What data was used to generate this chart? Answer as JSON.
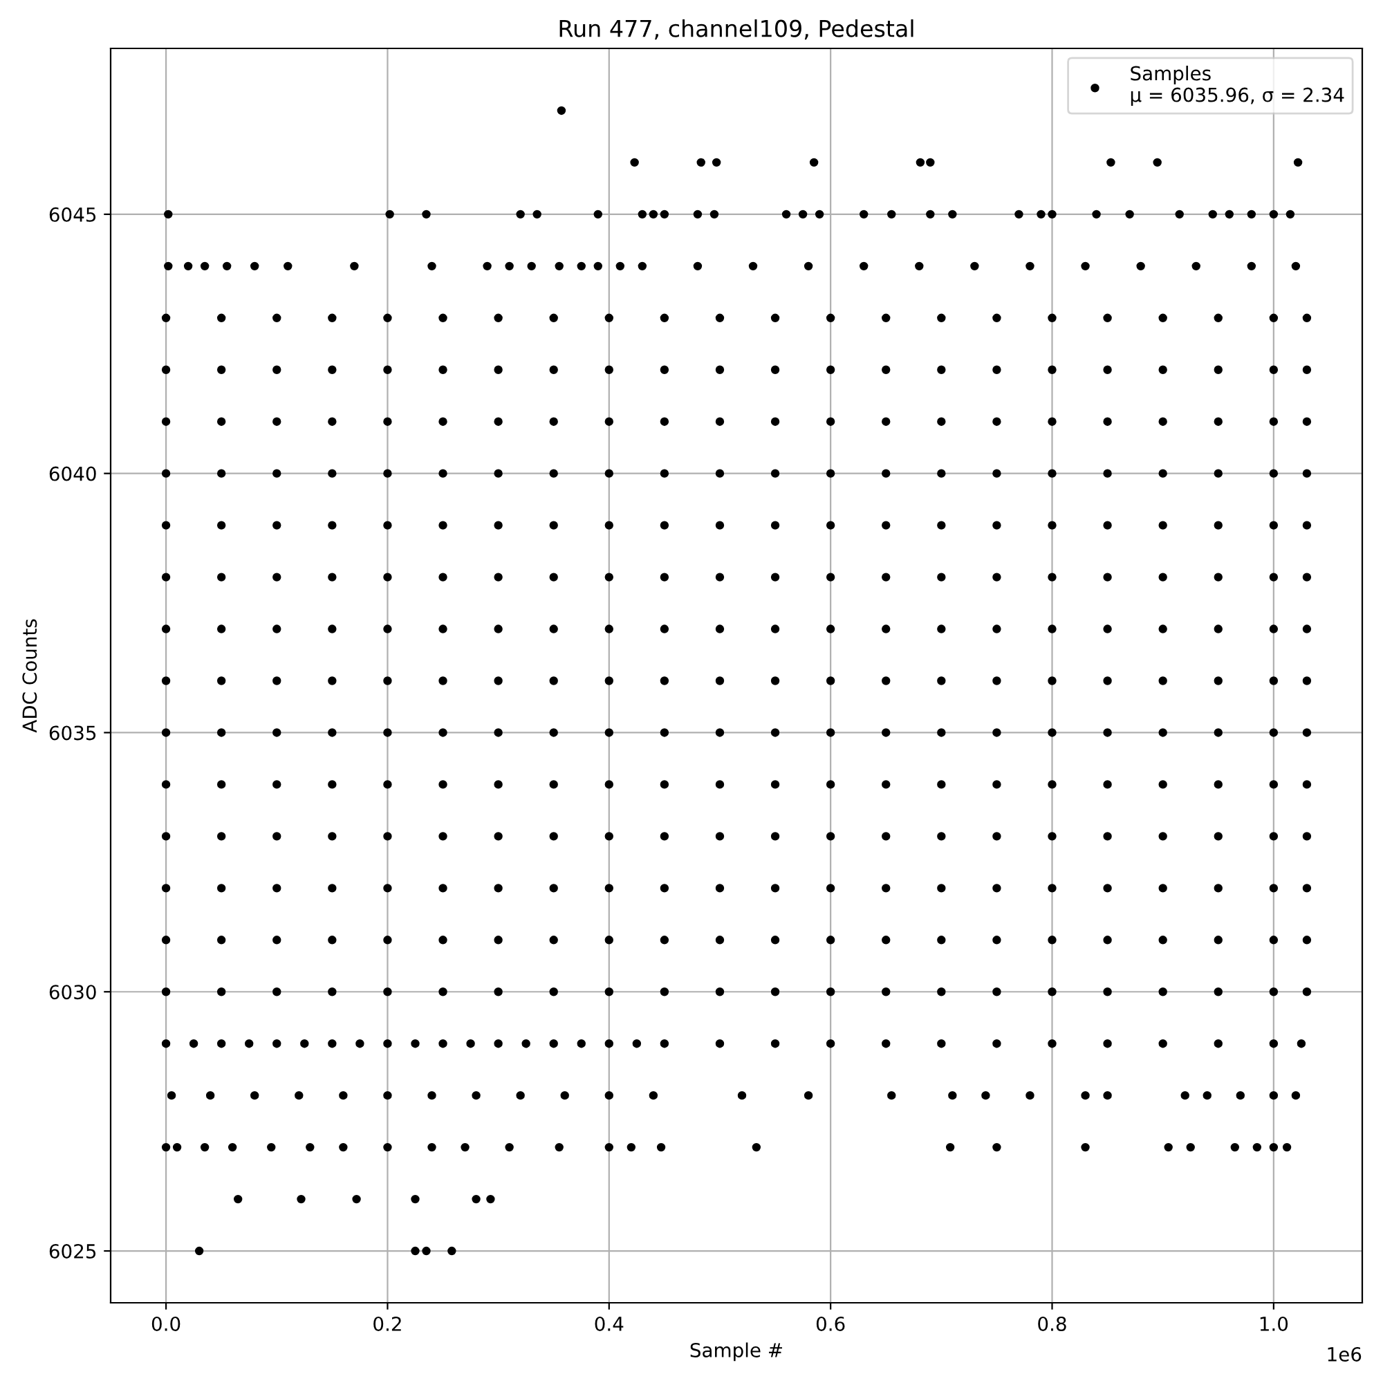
{
  "chart_data": {
    "type": "scatter",
    "title": "Run 477, channel109, Pedestal",
    "xlabel": "Sample #",
    "ylabel": "ADC Counts",
    "xlim": [
      -0.05,
      1.08
    ],
    "ylim": [
      6024,
      6048.2
    ],
    "xticks": [
      {
        "value": 0,
        "label": "0.0"
      },
      0.2,
      0.4,
      0.6,
      0.8,
      {
        "value": 1,
        "label": "1.0"
      }
    ],
    "yticks": [
      6025,
      6030,
      6035,
      6040,
      6045
    ],
    "annotations": [
      "1e6"
    ],
    "grid": true,
    "legend": "top right",
    "marker": "circle",
    "series": [
      {
        "name": "Samples\nμ = 6035.96, σ = 2.34",
        "color": "#000000",
        "x": [
          0,
          0.05,
          0.1,
          0.15,
          0.2,
          0.25,
          0.3,
          0.35,
          0.4,
          0.45,
          0.5,
          0.55,
          0.6,
          0.65,
          0.7,
          0.75,
          0.8,
          0.85,
          0.9,
          0.95,
          1.0,
          1.03,
          0,
          0.05,
          0.1,
          0.15,
          0.2,
          0.25,
          0.3,
          0.35,
          0.4,
          0.45,
          0.5,
          0.55,
          0.6,
          0.65,
          0.7,
          0.75,
          0.8,
          0.85,
          0.9,
          0.95,
          1.0,
          1.03,
          0,
          0.05,
          0.1,
          0.15,
          0.2,
          0.25,
          0.3,
          0.35,
          0.4,
          0.45,
          0.5,
          0.55,
          0.6,
          0.65,
          0.7,
          0.75,
          0.8,
          0.85,
          0.9,
          0.95,
          1.0,
          1.03,
          0,
          0.05,
          0.1,
          0.15,
          0.2,
          0.25,
          0.3,
          0.35,
          0.4,
          0.45,
          0.5,
          0.55,
          0.6,
          0.65,
          0.7,
          0.75,
          0.8,
          0.85,
          0.9,
          0.95,
          1.0,
          1.03,
          0,
          0.05,
          0.1,
          0.15,
          0.2,
          0.25,
          0.3,
          0.35,
          0.4,
          0.45,
          0.5,
          0.55,
          0.6,
          0.65,
          0.7,
          0.75,
          0.8,
          0.85,
          0.9,
          0.95,
          1.0,
          1.03,
          0,
          0.05,
          0.1,
          0.15,
          0.2,
          0.25,
          0.3,
          0.35,
          0.4,
          0.45,
          0.5,
          0.55,
          0.6,
          0.65,
          0.7,
          0.75,
          0.8,
          0.85,
          0.9,
          0.95,
          1.0,
          1.03,
          0,
          0.05,
          0.1,
          0.15,
          0.2,
          0.25,
          0.3,
          0.35,
          0.4,
          0.45,
          0.5,
          0.55,
          0.6,
          0.65,
          0.7,
          0.75,
          0.8,
          0.85,
          0.9,
          0.95,
          1.0,
          1.03,
          0,
          0.05,
          0.1,
          0.15,
          0.2,
          0.25,
          0.3,
          0.35,
          0.4,
          0.45,
          0.5,
          0.55,
          0.6,
          0.65,
          0.7,
          0.75,
          0.8,
          0.85,
          0.9,
          0.95,
          1.0,
          1.03,
          0,
          0.05,
          0.1,
          0.15,
          0.2,
          0.25,
          0.3,
          0.35,
          0.4,
          0.45,
          0.5,
          0.55,
          0.6,
          0.65,
          0.7,
          0.75,
          0.8,
          0.85,
          0.9,
          0.95,
          1.0,
          1.03,
          0,
          0.05,
          0.1,
          0.15,
          0.2,
          0.25,
          0.3,
          0.35,
          0.4,
          0.45,
          0.5,
          0.55,
          0.6,
          0.65,
          0.7,
          0.75,
          0.8,
          0.85,
          0.9,
          0.95,
          1.0,
          1.03,
          0,
          0.05,
          0.1,
          0.15,
          0.2,
          0.25,
          0.3,
          0.35,
          0.4,
          0.45,
          0.5,
          0.55,
          0.6,
          0.65,
          0.7,
          0.75,
          0.8,
          0.85,
          0.9,
          0.95,
          1.0,
          1.03,
          0,
          0.05,
          0.1,
          0.15,
          0.2,
          0.25,
          0.3,
          0.35,
          0.4,
          0.45,
          0.5,
          0.55,
          0.6,
          0.65,
          0.7,
          0.75,
          0.8,
          0.85,
          0.9,
          0.95,
          1.0,
          1.03,
          0,
          0.05,
          0.1,
          0.15,
          0.2,
          0.25,
          0.3,
          0.35,
          0.4,
          0.45,
          0.5,
          0.55,
          0.6,
          0.65,
          0.7,
          0.75,
          0.8,
          0.85,
          0.9,
          0.95,
          1.0,
          1.03,
          0,
          0.05,
          0.1,
          0.15,
          0.2,
          0.25,
          0.3,
          0.35,
          0.4,
          0.45,
          0.5,
          0.55,
          0.6,
          0.65,
          0.7,
          0.75,
          0.8,
          0.85,
          0.9,
          0.95,
          1.0,
          1.03,
          0.002,
          0.02,
          0.035,
          0.055,
          0.08,
          0.11,
          0.17,
          0.24,
          0.29,
          0.31,
          0.33,
          0.355,
          0.375,
          0.39,
          0.41,
          0.43,
          0.48,
          0.53,
          0.58,
          0.63,
          0.68,
          0.73,
          0.78,
          0.83,
          0.88,
          0.93,
          0.98,
          1.02,
          0.002,
          0.202,
          0.235,
          0.32,
          0.335,
          0.39,
          0.43,
          0.44,
          0.45,
          0.48,
          0.495,
          0.56,
          0.575,
          0.59,
          0.63,
          0.655,
          0.69,
          0.71,
          0.77,
          0.79,
          0.8,
          0.84,
          0.87,
          0.915,
          0.945,
          0.96,
          0.98,
          1.0,
          1.015,
          0.423,
          0.483,
          0.497,
          0.585,
          0.681,
          0.69,
          0.853,
          0.895,
          1.022,
          0.357,
          0,
          0.025,
          0.05,
          0.075,
          0.1,
          0.125,
          0.15,
          0.175,
          0.2,
          0.225,
          0.25,
          0.275,
          0.3,
          0.325,
          0.35,
          0.375,
          0.4,
          0.425,
          0.45,
          0.5,
          0.55,
          0.6,
          0.65,
          0.7,
          0.75,
          0.8,
          0.85,
          0.9,
          0.95,
          1.0,
          1.025,
          0.005,
          0.04,
          0.08,
          0.12,
          0.16,
          0.2,
          0.24,
          0.28,
          0.32,
          0.36,
          0.4,
          0.44,
          0.52,
          0.58,
          0.655,
          0.71,
          0.74,
          0.78,
          0.83,
          0.85,
          0.92,
          0.94,
          0.97,
          1.0,
          1.02,
          0,
          0.01,
          0.035,
          0.06,
          0.095,
          0.13,
          0.16,
          0.2,
          0.24,
          0.27,
          0.31,
          0.355,
          0.4,
          0.42,
          0.447,
          0.533,
          0.708,
          0.75,
          0.83,
          0.905,
          0.925,
          0.965,
          0.985,
          1.0,
          1.012,
          0.065,
          0.122,
          0.172,
          0.225,
          0.28,
          0.293,
          0.03,
          0.225,
          0.235,
          0.258
        ],
        "values": [
          6030,
          6030,
          6030,
          6030,
          6030,
          6030,
          6030,
          6030,
          6030,
          6030,
          6030,
          6030,
          6030,
          6030,
          6030,
          6030,
          6030,
          6030,
          6030,
          6030,
          6030,
          6030,
          6031,
          6031,
          6031,
          6031,
          6031,
          6031,
          6031,
          6031,
          6031,
          6031,
          6031,
          6031,
          6031,
          6031,
          6031,
          6031,
          6031,
          6031,
          6031,
          6031,
          6031,
          6031,
          6032,
          6032,
          6032,
          6032,
          6032,
          6032,
          6032,
          6032,
          6032,
          6032,
          6032,
          6032,
          6032,
          6032,
          6032,
          6032,
          6032,
          6032,
          6032,
          6032,
          6032,
          6032,
          6033,
          6033,
          6033,
          6033,
          6033,
          6033,
          6033,
          6033,
          6033,
          6033,
          6033,
          6033,
          6033,
          6033,
          6033,
          6033,
          6033,
          6033,
          6033,
          6033,
          6033,
          6033,
          6034,
          6034,
          6034,
          6034,
          6034,
          6034,
          6034,
          6034,
          6034,
          6034,
          6034,
          6034,
          6034,
          6034,
          6034,
          6034,
          6034,
          6034,
          6034,
          6034,
          6034,
          6034,
          6035,
          6035,
          6035,
          6035,
          6035,
          6035,
          6035,
          6035,
          6035,
          6035,
          6035,
          6035,
          6035,
          6035,
          6035,
          6035,
          6035,
          6035,
          6035,
          6035,
          6035,
          6035,
          6036,
          6036,
          6036,
          6036,
          6036,
          6036,
          6036,
          6036,
          6036,
          6036,
          6036,
          6036,
          6036,
          6036,
          6036,
          6036,
          6036,
          6036,
          6036,
          6036,
          6036,
          6036,
          6037,
          6037,
          6037,
          6037,
          6037,
          6037,
          6037,
          6037,
          6037,
          6037,
          6037,
          6037,
          6037,
          6037,
          6037,
          6037,
          6037,
          6037,
          6037,
          6037,
          6037,
          6037,
          6038,
          6038,
          6038,
          6038,
          6038,
          6038,
          6038,
          6038,
          6038,
          6038,
          6038,
          6038,
          6038,
          6038,
          6038,
          6038,
          6038,
          6038,
          6038,
          6038,
          6038,
          6038,
          6039,
          6039,
          6039,
          6039,
          6039,
          6039,
          6039,
          6039,
          6039,
          6039,
          6039,
          6039,
          6039,
          6039,
          6039,
          6039,
          6039,
          6039,
          6039,
          6039,
          6039,
          6039,
          6040,
          6040,
          6040,
          6040,
          6040,
          6040,
          6040,
          6040,
          6040,
          6040,
          6040,
          6040,
          6040,
          6040,
          6040,
          6040,
          6040,
          6040,
          6040,
          6040,
          6040,
          6040,
          6041,
          6041,
          6041,
          6041,
          6041,
          6041,
          6041,
          6041,
          6041,
          6041,
          6041,
          6041,
          6041,
          6041,
          6041,
          6041,
          6041,
          6041,
          6041,
          6041,
          6041,
          6041,
          6042,
          6042,
          6042,
          6042,
          6042,
          6042,
          6042,
          6042,
          6042,
          6042,
          6042,
          6042,
          6042,
          6042,
          6042,
          6042,
          6042,
          6042,
          6042,
          6042,
          6042,
          6042,
          6043,
          6043,
          6043,
          6043,
          6043,
          6043,
          6043,
          6043,
          6043,
          6043,
          6043,
          6043,
          6043,
          6043,
          6043,
          6043,
          6043,
          6043,
          6043,
          6043,
          6043,
          6043,
          6044,
          6044,
          6044,
          6044,
          6044,
          6044,
          6044,
          6044,
          6044,
          6044,
          6044,
          6044,
          6044,
          6044,
          6044,
          6044,
          6044,
          6044,
          6044,
          6044,
          6044,
          6044,
          6044,
          6044,
          6044,
          6044,
          6044,
          6044,
          6045,
          6045,
          6045,
          6045,
          6045,
          6045,
          6045,
          6045,
          6045,
          6045,
          6045,
          6045,
          6045,
          6045,
          6045,
          6045,
          6045,
          6045,
          6045,
          6045,
          6045,
          6045,
          6045,
          6045,
          6045,
          6045,
          6045,
          6045,
          6045,
          6046,
          6046,
          6046,
          6046,
          6046,
          6046,
          6046,
          6046,
          6046,
          6047,
          6029,
          6029,
          6029,
          6029,
          6029,
          6029,
          6029,
          6029,
          6029,
          6029,
          6029,
          6029,
          6029,
          6029,
          6029,
          6029,
          6029,
          6029,
          6029,
          6029,
          6029,
          6029,
          6029,
          6029,
          6029,
          6029,
          6029,
          6029,
          6029,
          6029,
          6029,
          6028,
          6028,
          6028,
          6028,
          6028,
          6028,
          6028,
          6028,
          6028,
          6028,
          6028,
          6028,
          6028,
          6028,
          6028,
          6028,
          6028,
          6028,
          6028,
          6028,
          6028,
          6028,
          6028,
          6028,
          6028,
          6027,
          6027,
          6027,
          6027,
          6027,
          6027,
          6027,
          6027,
          6027,
          6027,
          6027,
          6027,
          6027,
          6027,
          6027,
          6027,
          6027,
          6027,
          6027,
          6027,
          6027,
          6027,
          6027,
          6027,
          6027,
          6026,
          6026,
          6026,
          6026,
          6026,
          6026,
          6025,
          6025,
          6025,
          6025
        ]
      }
    ]
  }
}
